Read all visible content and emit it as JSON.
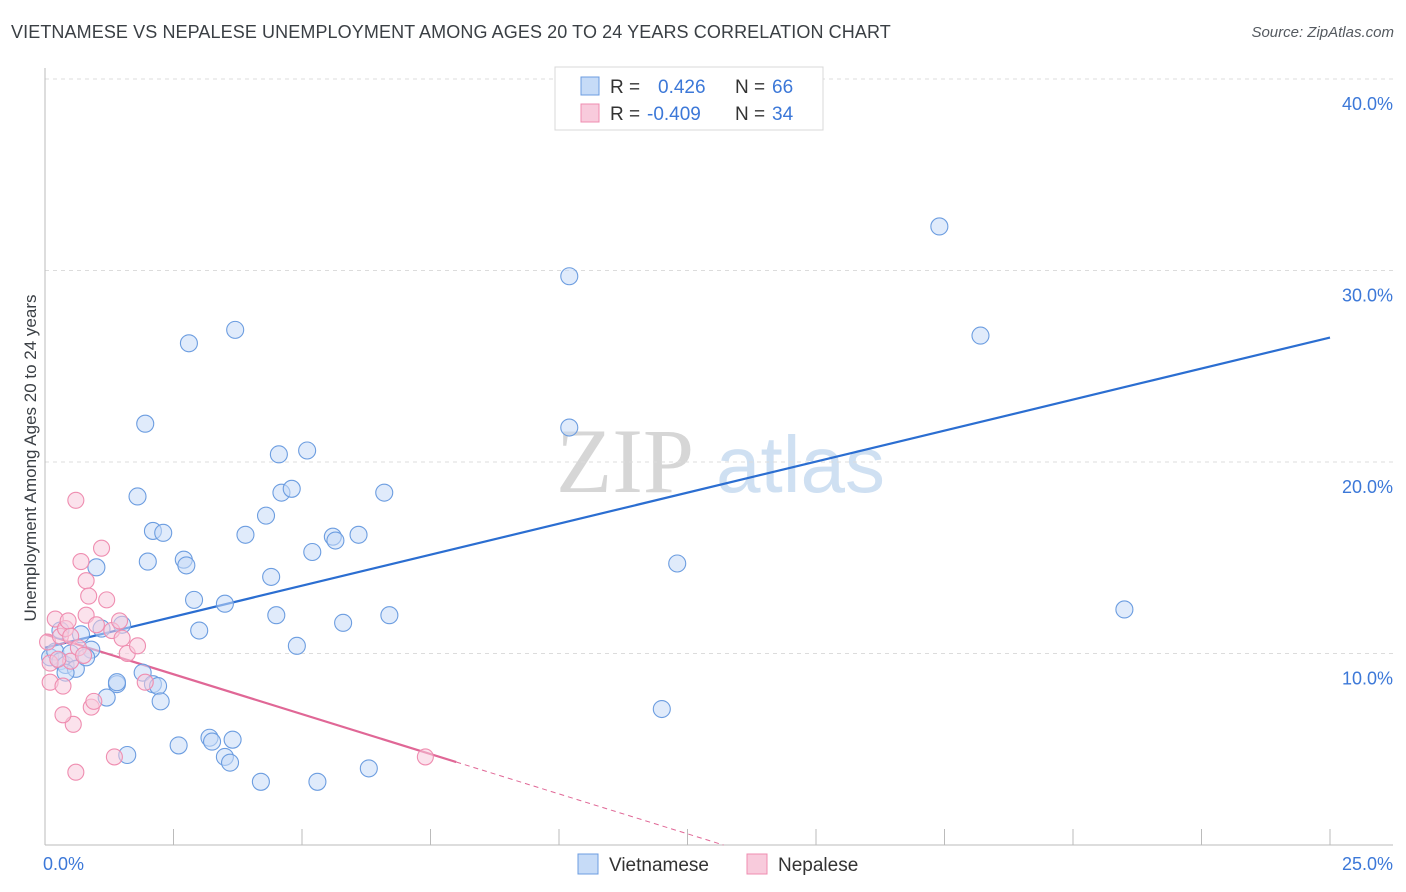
{
  "header": {
    "title": "VIETNAMESE VS NEPALESE UNEMPLOYMENT AMONG AGES 20 TO 24 YEARS CORRELATION CHART",
    "source": "Source: ZipAtlas.com"
  },
  "watermark": {
    "part1": "ZIP",
    "part2": "atlas"
  },
  "legend_top": {
    "rows": [
      {
        "r_label": "R =",
        "r_value": "0.426",
        "n_label": "N =",
        "n_value": "66"
      },
      {
        "r_label": "R =",
        "r_value": "-0.409",
        "n_label": "N =",
        "n_value": "34"
      }
    ]
  },
  "colors": {
    "vietnamese": "#6c9de0",
    "vietnamese_fill": "#c6dbf7",
    "vietnamese_line": "#2b6ed1",
    "nepalese": "#ef8db0",
    "nepalese_fill": "#f8cbdc",
    "nepalese_line": "#e06796",
    "value_text": "#3c78d8",
    "grid": "#dcdcdc"
  },
  "chart_data": {
    "type": "scatter",
    "title": "VIETNAMESE VS NEPALESE UNEMPLOYMENT AMONG AGES 20 TO 24 YEARS CORRELATION CHART",
    "xlabel": "",
    "ylabel": "Unemployment Among Ages 20 to 24 years",
    "xlim": [
      0,
      25
    ],
    "ylim": [
      0,
      40
    ],
    "x_tick_labels": [
      "0.0%",
      "25.0%"
    ],
    "y_ticks": [
      10,
      20,
      30,
      40
    ],
    "y_tick_labels": [
      "10.0%",
      "20.0%",
      "30.0%",
      "40.0%"
    ],
    "grid": true,
    "legend_position": "bottom-center",
    "series": [
      {
        "name": "Vietnamese",
        "r": 0.426,
        "n": 66,
        "trend": {
          "x": [
            0.0,
            25.0
          ],
          "y": [
            10.3,
            26.5
          ],
          "solid_to": 25.0
        },
        "points": [
          [
            0.1,
            9.8
          ],
          [
            0.2,
            10.1
          ],
          [
            0.3,
            9.6
          ],
          [
            0.4,
            9.4
          ],
          [
            0.5,
            10.0
          ],
          [
            0.3,
            11.2
          ],
          [
            0.6,
            9.2
          ],
          [
            0.9,
            10.2
          ],
          [
            0.8,
            9.8
          ],
          [
            1.1,
            11.3
          ],
          [
            1.2,
            7.7
          ],
          [
            1.4,
            8.4
          ],
          [
            1.0,
            14.5
          ],
          [
            1.5,
            11.5
          ],
          [
            1.6,
            4.7
          ],
          [
            1.8,
            18.2
          ],
          [
            1.9,
            9.0
          ],
          [
            1.95,
            22.0
          ],
          [
            2.0,
            14.8
          ],
          [
            2.1,
            16.4
          ],
          [
            2.1,
            8.4
          ],
          [
            2.2,
            8.3
          ],
          [
            2.25,
            7.5
          ],
          [
            2.3,
            16.3
          ],
          [
            2.6,
            5.2
          ],
          [
            2.7,
            14.9
          ],
          [
            2.75,
            14.6
          ],
          [
            2.8,
            26.2
          ],
          [
            2.9,
            12.8
          ],
          [
            3.0,
            11.2
          ],
          [
            3.2,
            5.6
          ],
          [
            3.25,
            5.4
          ],
          [
            3.5,
            12.6
          ],
          [
            3.5,
            4.6
          ],
          [
            3.6,
            4.3
          ],
          [
            3.65,
            5.5
          ],
          [
            3.7,
            26.9
          ],
          [
            3.9,
            16.2
          ],
          [
            4.2,
            3.3
          ],
          [
            4.3,
            17.2
          ],
          [
            4.4,
            14.0
          ],
          [
            4.5,
            12.0
          ],
          [
            4.55,
            20.4
          ],
          [
            4.6,
            18.4
          ],
          [
            4.8,
            18.6
          ],
          [
            4.9,
            10.4
          ],
          [
            5.1,
            20.6
          ],
          [
            5.2,
            15.3
          ],
          [
            5.3,
            3.3
          ],
          [
            5.6,
            16.1
          ],
          [
            5.65,
            15.9
          ],
          [
            5.8,
            11.6
          ],
          [
            6.1,
            16.2
          ],
          [
            6.3,
            4.0
          ],
          [
            6.7,
            12.0
          ],
          [
            6.6,
            18.4
          ],
          [
            10.2,
            29.7
          ],
          [
            10.2,
            21.8
          ],
          [
            12.3,
            14.7
          ],
          [
            12.0,
            7.1
          ],
          [
            17.4,
            32.3
          ],
          [
            18.2,
            26.6
          ],
          [
            21.0,
            12.3
          ],
          [
            0.7,
            11.0
          ],
          [
            1.4,
            8.5
          ],
          [
            0.4,
            9.0
          ]
        ]
      },
      {
        "name": "Nepalese",
        "r": -0.409,
        "n": 34,
        "trend": {
          "x": [
            0.0,
            13.2
          ],
          "y": [
            11.0,
            0.0
          ],
          "solid_to": 8.0
        },
        "points": [
          [
            0.05,
            10.6
          ],
          [
            0.1,
            9.5
          ],
          [
            0.1,
            8.5
          ],
          [
            0.2,
            11.8
          ],
          [
            0.3,
            10.9
          ],
          [
            0.35,
            8.3
          ],
          [
            0.4,
            11.3
          ],
          [
            0.45,
            11.7
          ],
          [
            0.5,
            10.9
          ],
          [
            0.5,
            9.6
          ],
          [
            0.55,
            6.3
          ],
          [
            0.6,
            18.0
          ],
          [
            0.65,
            10.3
          ],
          [
            0.7,
            14.8
          ],
          [
            0.75,
            9.9
          ],
          [
            0.8,
            12.0
          ],
          [
            0.8,
            13.8
          ],
          [
            0.85,
            13.0
          ],
          [
            0.9,
            7.2
          ],
          [
            0.95,
            7.5
          ],
          [
            1.0,
            11.5
          ],
          [
            1.1,
            15.5
          ],
          [
            1.2,
            12.8
          ],
          [
            1.3,
            11.2
          ],
          [
            1.35,
            4.6
          ],
          [
            1.45,
            11.7
          ],
          [
            1.5,
            10.8
          ],
          [
            1.6,
            10.0
          ],
          [
            1.8,
            10.4
          ],
          [
            1.95,
            8.5
          ],
          [
            0.6,
            3.8
          ],
          [
            0.35,
            6.8
          ],
          [
            0.25,
            9.7
          ],
          [
            7.4,
            4.6
          ]
        ]
      }
    ]
  },
  "legend_bottom": {
    "items": [
      "Vietnamese",
      "Nepalese"
    ]
  }
}
